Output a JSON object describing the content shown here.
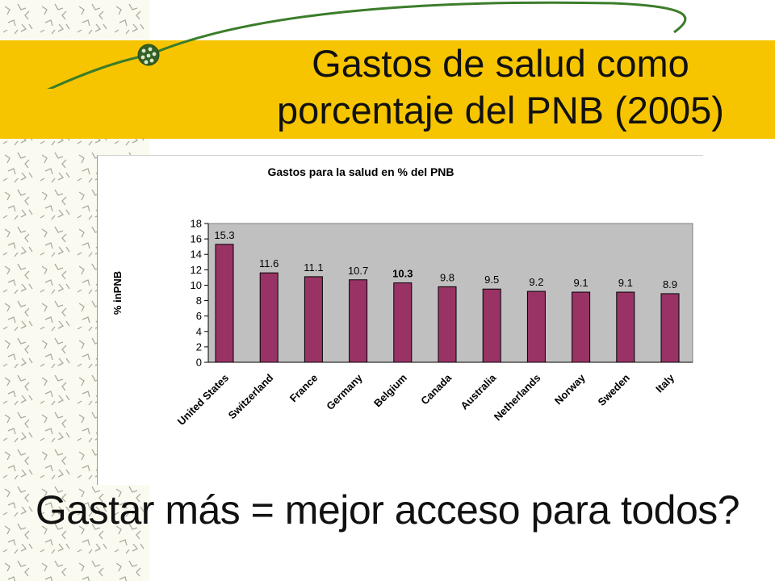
{
  "slide": {
    "title_line1": "Gastos de salud como",
    "title_line2": "porcentaje del PNB (2005)",
    "bottom_text": "Gastar más = mejor acceso para todos?"
  },
  "colors": {
    "band": "#f7c500",
    "bar": "#993366",
    "plot_bg": "#c0c0c0",
    "ring": "#3b7d2a"
  },
  "chart_data": {
    "type": "bar",
    "title": "Gastos para la salud en % del PNB",
    "ylabel": "% inPNB",
    "xlabel": "",
    "categories": [
      "United States",
      "Switzerland",
      "France",
      "Germany",
      "Belgium",
      "Canada",
      "Australia",
      "Netherlands",
      "Norway",
      "Sweden",
      "Italy"
    ],
    "values": [
      15.3,
      11.6,
      11.1,
      10.7,
      10.3,
      9.8,
      9.5,
      9.2,
      9.1,
      9.1,
      8.9
    ],
    "value_labels": [
      "15.3",
      "11.6",
      "11.1",
      "10.7",
      "10.3",
      "9.8",
      "9.5",
      "9.2",
      "9.1",
      "9.1",
      "8.9"
    ],
    "bold_label": "Belgium",
    "ylim": [
      0,
      18
    ],
    "yticks": [
      "0",
      "2",
      "4",
      "6",
      "8",
      "10",
      "12",
      "14",
      "16",
      "18"
    ],
    "grid": false,
    "legend": "none"
  }
}
